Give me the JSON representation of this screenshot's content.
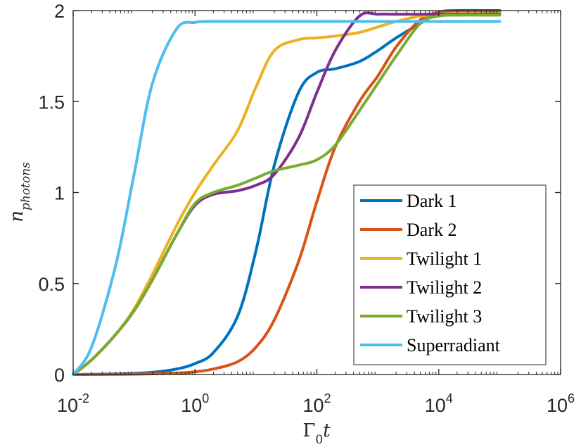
{
  "chart_data": {
    "type": "line",
    "x_scale": "log",
    "y_scale": "linear",
    "xlim": [
      0.01,
      1000000
    ],
    "ylim": [
      0,
      2
    ],
    "grid": false,
    "legend_position": "bottom-right",
    "x_ticks": [
      {
        "value": 0.01,
        "base": "10",
        "exp": "-2"
      },
      {
        "value": 1,
        "base": "10",
        "exp": "0"
      },
      {
        "value": 100,
        "base": "10",
        "exp": "2"
      },
      {
        "value": 10000,
        "base": "10",
        "exp": "4"
      },
      {
        "value": 1000000,
        "base": "10",
        "exp": "6"
      }
    ],
    "y_ticks": [
      {
        "value": 0,
        "label": "0"
      },
      {
        "value": 0.5,
        "label": "0.5"
      },
      {
        "value": 1,
        "label": "1"
      },
      {
        "value": 1.5,
        "label": "1.5"
      },
      {
        "value": 2,
        "label": "2"
      }
    ],
    "xlabel": {
      "main": "Γ",
      "sub": "0",
      "tail": "t"
    },
    "ylabel": {
      "main": "n",
      "sub": "photons"
    },
    "x": [
      0.01,
      0.02,
      0.05,
      0.1,
      0.2,
      0.5,
      1,
      2,
      5,
      10,
      20,
      50,
      100,
      200,
      500,
      1000,
      2000,
      5000,
      10000,
      20000,
      50000,
      100000
    ],
    "series": [
      {
        "name": "Dark 1",
        "color": "#0072BD",
        "values": [
          0,
          0.001,
          0.003,
          0.006,
          0.012,
          0.03,
          0.06,
          0.12,
          0.32,
          0.68,
          1.15,
          1.55,
          1.66,
          1.68,
          1.72,
          1.78,
          1.85,
          1.93,
          1.99,
          2.0,
          2.0,
          2.0
        ]
      },
      {
        "name": "Dark 2",
        "color": "#D95319",
        "values": [
          0,
          0.0004,
          0.001,
          0.002,
          0.004,
          0.008,
          0.015,
          0.03,
          0.07,
          0.15,
          0.3,
          0.62,
          0.95,
          1.25,
          1.5,
          1.64,
          1.8,
          1.95,
          1.99,
          1.995,
          1.995,
          1.995
        ]
      },
      {
        "name": "Twilight 1",
        "color": "#EDB120",
        "values": [
          0,
          0.08,
          0.22,
          0.36,
          0.55,
          0.82,
          1.0,
          1.15,
          1.34,
          1.58,
          1.78,
          1.84,
          1.85,
          1.86,
          1.88,
          1.91,
          1.94,
          1.97,
          1.98,
          1.985,
          1.985,
          1.985
        ]
      },
      {
        "name": "Twilight 2",
        "color": "#7E2F8E",
        "values": [
          0,
          0.08,
          0.22,
          0.35,
          0.52,
          0.77,
          0.93,
          0.99,
          1.01,
          1.04,
          1.1,
          1.3,
          1.55,
          1.78,
          1.97,
          1.98,
          1.98,
          1.98,
          1.98,
          1.98,
          1.98,
          1.98
        ]
      },
      {
        "name": "Twilight 3",
        "color": "#77AC30",
        "values": [
          0,
          0.08,
          0.22,
          0.35,
          0.52,
          0.77,
          0.94,
          1.0,
          1.04,
          1.08,
          1.12,
          1.15,
          1.18,
          1.26,
          1.45,
          1.6,
          1.75,
          1.93,
          1.97,
          1.975,
          1.975,
          1.975
        ]
      },
      {
        "name": "Superradiant",
        "color": "#4DBEEE",
        "values": [
          0,
          0.15,
          0.6,
          1.1,
          1.6,
          1.9,
          1.935,
          1.94,
          1.94,
          1.94,
          1.94,
          1.94,
          1.94,
          1.94,
          1.94,
          1.94,
          1.94,
          1.94,
          1.94,
          1.94,
          1.94,
          1.94
        ]
      }
    ]
  }
}
